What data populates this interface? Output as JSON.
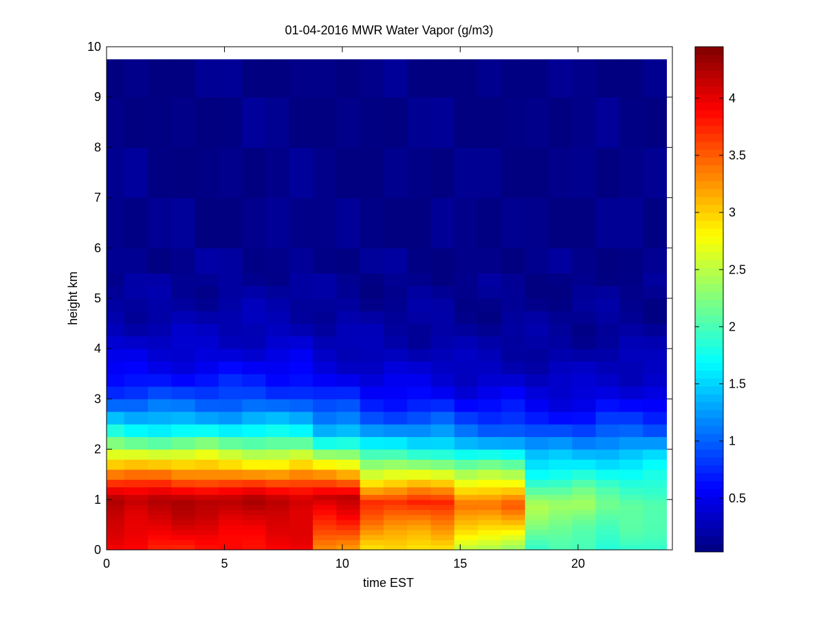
{
  "chart_data": {
    "type": "heatmap",
    "title": "01-04-2016 MWR Water Vapor (g/m3)",
    "xlabel": "time EST",
    "ylabel": "height km",
    "xlim": [
      0,
      24
    ],
    "ylim": [
      0,
      10
    ],
    "x_ticks": [
      "0",
      "5",
      "10",
      "15",
      "20"
    ],
    "y_ticks": [
      "0",
      "1",
      "2",
      "3",
      "4",
      "5",
      "6",
      "7",
      "8",
      "9",
      "10"
    ],
    "colorbar": {
      "colormap": "jet",
      "range": [
        0.03,
        4.45
      ],
      "ticks": [
        "0.5",
        "1",
        "1.5",
        "2",
        "2.5",
        "3",
        "3.5",
        "4"
      ]
    },
    "grid": false,
    "x_centers": [
      0.25,
      1.25,
      2.25,
      3.25,
      4.25,
      5.25,
      6.25,
      7.25,
      8.25,
      9.25,
      10.25,
      11.25,
      12.25,
      13.25,
      14.25,
      15.25,
      16.25,
      17.25,
      18.25,
      19.25,
      20.25,
      21.25,
      22.25,
      23.25
    ],
    "heights_km": [
      0.0,
      0.1,
      0.2,
      0.3,
      0.4,
      0.5,
      0.6,
      0.7,
      0.8,
      0.9,
      1.0,
      1.1,
      1.25,
      1.4,
      1.6,
      1.8,
      2.0,
      2.25,
      2.5,
      2.75,
      3.0,
      3.25,
      3.5,
      3.75,
      4.0,
      4.25,
      4.5,
      4.75,
      5.0,
      5.25,
      5.5,
      6.0,
      7.0,
      8.0,
      9.0,
      9.75
    ],
    "profiles": [
      {
        "t0": 0,
        "t1": 0.5,
        "surface": 3.85,
        "peak": 4.3,
        "peak_height": 1.0,
        "upper": 2.5,
        "decay": 1.0
      },
      {
        "t0": 0.5,
        "t1": 4.5,
        "surface": 3.8,
        "peak": 4.25,
        "peak_height": 1.0,
        "upper": 2.45,
        "decay": 1.0
      },
      {
        "t0": 4.5,
        "t1": 8.5,
        "surface": 3.85,
        "peak": 4.2,
        "peak_height": 1.0,
        "upper": 2.35,
        "decay": 1.05
      },
      {
        "t0": 8.5,
        "t1": 10.5,
        "surface": 3.3,
        "peak": 4.15,
        "peak_height": 1.05,
        "upper": 2.1,
        "decay": 0.95
      },
      {
        "t0": 10.5,
        "t1": 14.5,
        "surface": 2.9,
        "peak": 3.7,
        "peak_height": 0.95,
        "upper": 1.75,
        "decay": 0.95
      },
      {
        "t0": 14.5,
        "t1": 17.5,
        "surface": 2.4,
        "peak": 3.5,
        "peak_height": 0.9,
        "upper": 1.55,
        "decay": 0.9
      },
      {
        "t0": 17.5,
        "t1": 20.5,
        "surface": 1.95,
        "peak": 2.4,
        "peak_height": 0.9,
        "upper": 1.3,
        "decay": 0.9
      },
      {
        "t0": 20.5,
        "t1": 23.5,
        "surface": 1.85,
        "peak": 2.15,
        "peak_height": 0.9,
        "upper": 1.4,
        "decay": 0.95
      }
    ],
    "background_value": 0.05
  }
}
